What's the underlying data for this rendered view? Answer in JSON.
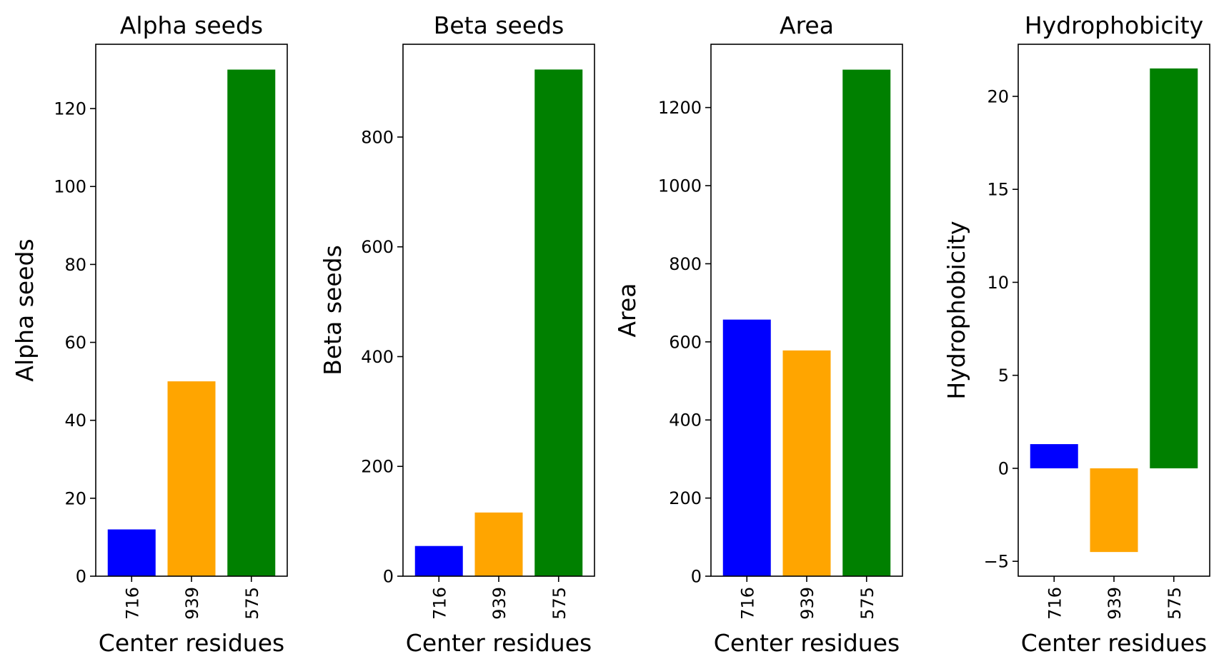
{
  "chart_data": [
    {
      "type": "bar",
      "title": "Alpha seeds",
      "xlabel": "Center residues",
      "ylabel": "Alpha seeds",
      "categories": [
        "716",
        "939",
        "575"
      ],
      "values": [
        12,
        50,
        130
      ],
      "colors": [
        "#0000ff",
        "#ffa500",
        "#008000"
      ],
      "ylim": [
        0,
        136.5
      ],
      "yticks": [
        0,
        20,
        40,
        60,
        80,
        100,
        120
      ],
      "ytick_labels": [
        "0",
        "20",
        "40",
        "60",
        "80",
        "100",
        "120"
      ]
    },
    {
      "type": "bar",
      "title": "Beta seeds",
      "xlabel": "Center residues",
      "ylabel": "Beta seeds",
      "categories": [
        "716",
        "939",
        "575"
      ],
      "values": [
        55,
        116,
        923
      ],
      "colors": [
        "#0000ff",
        "#ffa500",
        "#008000"
      ],
      "ylim": [
        0,
        969
      ],
      "yticks": [
        0,
        200,
        400,
        600,
        800
      ],
      "ytick_labels": [
        "0",
        "200",
        "400",
        "600",
        "800"
      ]
    },
    {
      "type": "bar",
      "title": "Area",
      "xlabel": "Center residues",
      "ylabel": "Area",
      "categories": [
        "716",
        "939",
        "575"
      ],
      "values": [
        657,
        578,
        1297
      ],
      "colors": [
        "#0000ff",
        "#ffa500",
        "#008000"
      ],
      "ylim": [
        0,
        1362
      ],
      "yticks": [
        0,
        200,
        400,
        600,
        800,
        1000,
        1200
      ],
      "ytick_labels": [
        "0",
        "200",
        "400",
        "600",
        "800",
        "1000",
        "1200"
      ]
    },
    {
      "type": "bar",
      "title": "Hydrophobicity",
      "xlabel": "Center residues",
      "ylabel": "Hydrophobicity",
      "categories": [
        "716",
        "939",
        "575"
      ],
      "values": [
        1.3,
        -4.5,
        21.5
      ],
      "colors": [
        "#0000ff",
        "#ffa500",
        "#008000"
      ],
      "ylim": [
        -5.8,
        22.8
      ],
      "yticks": [
        -5,
        0,
        5,
        10,
        15,
        20
      ],
      "ytick_labels": [
        "−5",
        "0",
        "5",
        "10",
        "15",
        "20"
      ]
    }
  ]
}
